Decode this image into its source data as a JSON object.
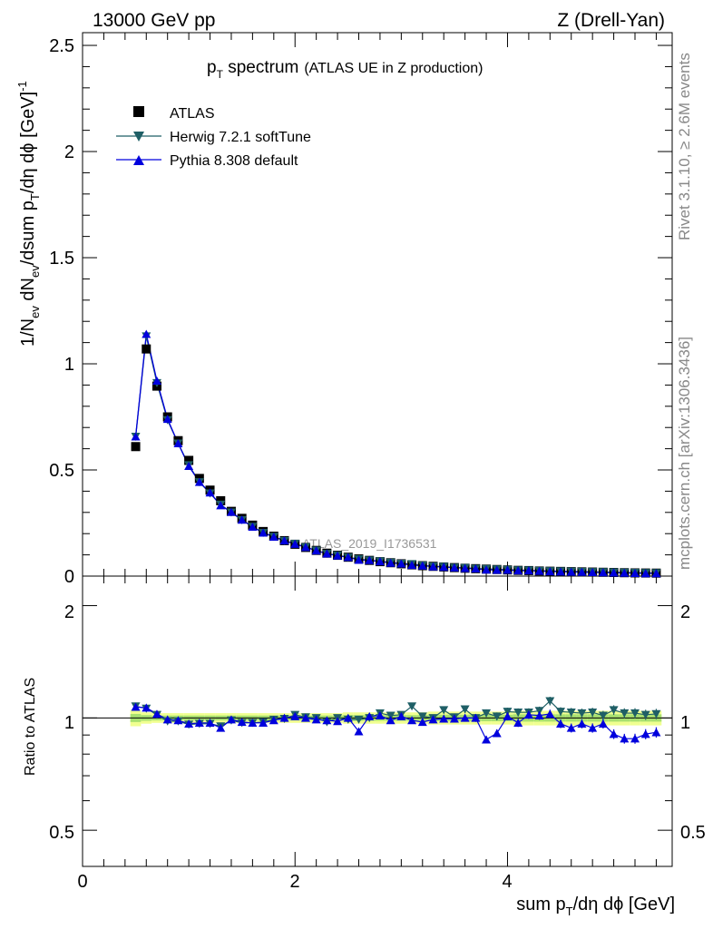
{
  "header": {
    "energy": "13000 GeV pp",
    "process": "Z (Drell-Yan)"
  },
  "plot_title": {
    "main": "p",
    "main_sub": "T",
    "main_rest": " spectrum",
    "detail": "(ATLAS UE in Z production)"
  },
  "watermark": "ATLAS_2019_I1736531",
  "side_texts": {
    "rivet": "Rivet 3.1.10, ≥ 2.6M events",
    "mcplots": "mcplots.cern.ch [arXiv:1306.3436]"
  },
  "legend": [
    {
      "label": "ATLAS",
      "marker": "square",
      "color": "#000000"
    },
    {
      "label": "Herwig 7.2.1 softTune",
      "marker": "triangle-down",
      "color": "#1f5f66"
    },
    {
      "label": "Pythia 8.308 default",
      "marker": "triangle-up",
      "color": "#0000dd"
    }
  ],
  "y_axis_top": {
    "part1": "1/N",
    "sub1": "ev",
    "part2": " dN",
    "sub2": "ev",
    "part3": "/dsum p",
    "sub3": "T",
    "part4": "/dη dϕ  [GeV]",
    "sup4": "-1",
    "ticks": [
      "0",
      "0.5",
      "1",
      "1.5",
      "2",
      "2.5"
    ]
  },
  "y_axis_bottom": {
    "label": "Ratio to ATLAS",
    "ticks_left": [
      "0.5",
      "1",
      "2"
    ],
    "ticks_right": [
      "0.5",
      "1",
      "2"
    ]
  },
  "x_axis": {
    "part1": "sum p",
    "sub1": "T",
    "part2": "/dη dϕ [GeV]",
    "ticks": [
      "0",
      "2",
      "4"
    ]
  },
  "colors": {
    "atlas": "#000000",
    "herwig": "#1f5f66",
    "pythia": "#0000dd",
    "band_outer": "#f0ff90",
    "band_inner": "#a8e070"
  },
  "chart_data": {
    "type": "line",
    "main_panel": {
      "xlim": [
        0,
        5.55
      ],
      "ylim": [
        0,
        2.56
      ],
      "x": [
        0.5,
        0.6,
        0.7,
        0.8,
        0.9,
        1.0,
        1.1,
        1.2,
        1.3,
        1.4,
        1.5,
        1.6,
        1.7,
        1.8,
        1.9,
        2.0,
        2.1,
        2.2,
        2.3,
        2.4,
        2.5,
        2.6,
        2.7,
        2.8,
        2.9,
        3.0,
        3.1,
        3.2,
        3.3,
        3.4,
        3.5,
        3.6,
        3.7,
        3.8,
        3.9,
        4.0,
        4.1,
        4.2,
        4.3,
        4.4,
        4.5,
        4.6,
        4.7,
        4.8,
        4.9,
        5.0,
        5.1,
        5.2,
        5.3,
        5.4
      ],
      "series": [
        {
          "name": "ATLAS",
          "values": [
            0.61,
            1.07,
            0.895,
            0.75,
            0.638,
            0.545,
            0.46,
            0.405,
            0.355,
            0.305,
            0.272,
            0.24,
            0.21,
            0.188,
            0.167,
            0.15,
            0.135,
            0.121,
            0.108,
            0.098,
            0.089,
            0.081,
            0.074,
            0.068,
            0.063,
            0.058,
            0.053,
            0.049,
            0.046,
            0.043,
            0.04,
            0.037,
            0.035,
            0.033,
            0.031,
            0.029,
            0.027,
            0.026,
            0.024,
            0.023,
            0.022,
            0.021,
            0.02,
            0.019,
            0.018,
            0.017,
            0.016,
            0.015,
            0.0145,
            0.014
          ]
        },
        {
          "name": "Herwig 7.2.1 softTune",
          "values": [
            0.657,
            1.13,
            0.91,
            0.735,
            0.625,
            0.523,
            0.443,
            0.39,
            0.337,
            0.3,
            0.264,
            0.233,
            0.204,
            0.186,
            0.166,
            0.153,
            0.136,
            0.121,
            0.105,
            0.098,
            0.088,
            0.08,
            0.074,
            0.07,
            0.064,
            0.059,
            0.057,
            0.05,
            0.046,
            0.045,
            0.04,
            0.039,
            0.035,
            0.034,
            0.032,
            0.03,
            0.028,
            0.027,
            0.025,
            0.024,
            0.023,
            0.022,
            0.021,
            0.02,
            0.019,
            0.018,
            0.017,
            0.016,
            0.015,
            0.0145
          ]
        },
        {
          "name": "Pythia 8.308 default",
          "values": [
            0.657,
            1.14,
            0.92,
            0.74,
            0.625,
            0.518,
            0.443,
            0.393,
            0.333,
            0.302,
            0.265,
            0.232,
            0.204,
            0.185,
            0.167,
            0.151,
            0.136,
            0.12,
            0.106,
            0.096,
            0.089,
            0.076,
            0.075,
            0.069,
            0.062,
            0.059,
            0.052,
            0.049,
            0.045,
            0.043,
            0.04,
            0.037,
            0.035,
            0.03,
            0.029,
            0.029,
            0.026,
            0.026,
            0.024,
            0.022,
            0.021,
            0.02,
            0.019,
            0.018,
            0.017,
            0.016,
            0.015,
            0.014,
            0.013,
            0.0128
          ]
        }
      ]
    },
    "ratio_panel": {
      "ylim": [
        0.4,
        2.4
      ],
      "log_y": true,
      "x": [
        0.5,
        0.6,
        0.7,
        0.8,
        0.9,
        1.0,
        1.1,
        1.2,
        1.3,
        1.4,
        1.5,
        1.6,
        1.7,
        1.8,
        1.9,
        2.0,
        2.1,
        2.2,
        2.3,
        2.4,
        2.5,
        2.6,
        2.7,
        2.8,
        2.9,
        3.0,
        3.1,
        3.2,
        3.3,
        3.4,
        3.5,
        3.6,
        3.7,
        3.8,
        3.9,
        4.0,
        4.1,
        4.2,
        4.3,
        4.4,
        4.5,
        4.6,
        4.7,
        4.8,
        4.9,
        5.0,
        5.1,
        5.2,
        5.3,
        5.4
      ],
      "band": [
        0.05,
        0.035,
        0.03,
        0.03,
        0.03,
        0.03,
        0.03,
        0.03,
        0.03,
        0.03,
        0.03,
        0.03,
        0.03,
        0.03,
        0.03,
        0.03,
        0.03,
        0.03,
        0.03,
        0.03,
        0.035,
        0.035,
        0.035,
        0.035,
        0.035,
        0.035,
        0.035,
        0.035,
        0.04,
        0.04,
        0.04,
        0.04,
        0.04,
        0.04,
        0.04,
        0.04,
        0.045,
        0.045,
        0.045,
        0.045,
        0.045,
        0.045,
        0.045,
        0.045,
        0.045,
        0.045,
        0.045,
        0.045,
        0.045,
        0.045
      ],
      "series": [
        {
          "name": "Herwig 7.2.1 softTune",
          "values": [
            1.075,
            1.06,
            1.02,
            0.98,
            0.98,
            0.96,
            0.965,
            0.965,
            0.95,
            0.985,
            0.97,
            0.97,
            0.975,
            0.99,
            0.995,
            1.02,
            1.005,
            1.0,
            0.975,
            1.0,
            0.99,
            0.99,
            1.0,
            1.03,
            1.015,
            1.02,
            1.075,
            1.01,
            1.0,
            1.05,
            1.005,
            1.055,
            1.0,
            1.03,
            1.01,
            1.04,
            1.035,
            1.035,
            1.045,
            1.11,
            1.04,
            1.035,
            1.03,
            1.035,
            1.015,
            1.05,
            1.03,
            1.03,
            1.02,
            1.025
          ]
        },
        {
          "name": "Pythia 8.308 default",
          "values": [
            1.07,
            1.065,
            1.025,
            0.99,
            0.985,
            0.965,
            0.97,
            0.97,
            0.94,
            0.99,
            0.975,
            0.97,
            0.97,
            0.985,
            1.0,
            1.01,
            1.0,
            0.99,
            0.985,
            0.98,
            1.0,
            0.92,
            1.01,
            1.015,
            0.985,
            1.01,
            0.985,
            0.975,
            0.99,
            0.995,
            0.995,
            1.0,
            1.0,
            0.875,
            0.91,
            1.01,
            0.97,
            1.02,
            1.015,
            1.025,
            0.965,
            0.94,
            0.965,
            0.94,
            0.965,
            0.905,
            0.88,
            0.88,
            0.905,
            0.915
          ]
        }
      ]
    }
  }
}
